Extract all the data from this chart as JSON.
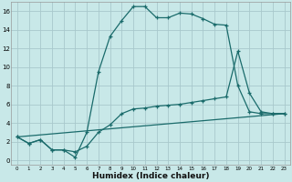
{
  "xlabel": "Humidex (Indice chaleur)",
  "bg_color": "#c8e8e8",
  "grid_color": "#a8c8cc",
  "line_color": "#1a6b6b",
  "xlim_min": -0.5,
  "xlim_max": 23.5,
  "ylim_min": -0.5,
  "ylim_max": 17.0,
  "xticks": [
    0,
    1,
    2,
    3,
    4,
    5,
    6,
    7,
    8,
    9,
    10,
    11,
    12,
    13,
    14,
    15,
    16,
    17,
    18,
    19,
    20,
    21,
    22,
    23
  ],
  "yticks": [
    0,
    2,
    4,
    6,
    8,
    10,
    12,
    14,
    16
  ],
  "curve1_x": [
    0,
    1,
    2,
    3,
    4,
    5,
    6,
    7,
    8,
    9,
    10,
    11,
    12,
    13,
    14,
    15,
    16,
    17,
    18,
    19,
    20,
    21,
    22,
    23
  ],
  "curve1_y": [
    2.5,
    1.8,
    2.2,
    1.1,
    1.1,
    0.3,
    3.0,
    9.5,
    13.3,
    15.0,
    16.5,
    16.5,
    15.3,
    15.3,
    15.8,
    15.7,
    15.2,
    14.6,
    14.5,
    8.0,
    5.2,
    5.0,
    5.0,
    5.0
  ],
  "curve2_x": [
    0,
    1,
    2,
    3,
    4,
    5,
    6,
    7,
    8,
    9,
    10,
    11,
    12,
    13,
    14,
    15,
    16,
    17,
    18,
    19,
    20,
    21,
    22,
    23
  ],
  "curve2_y": [
    2.5,
    1.8,
    2.2,
    1.1,
    1.1,
    0.9,
    1.5,
    3.0,
    3.8,
    5.0,
    5.5,
    5.6,
    5.8,
    5.9,
    6.0,
    6.2,
    6.4,
    6.6,
    6.8,
    11.7,
    7.2,
    5.2,
    5.0,
    5.0
  ],
  "curve3_x": [
    0,
    23
  ],
  "curve3_y": [
    2.5,
    5.0
  ]
}
